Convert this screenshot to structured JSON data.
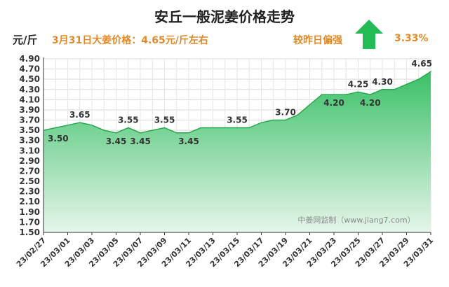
{
  "header": {
    "title": "安丘一般泥姜价格走势",
    "unit": "元/斤",
    "headline": "3月31日大姜价格：4.65元/斤左右",
    "compare_label": "较昨日偏强",
    "compare_value": "3.33%",
    "trend_icon": "up-arrow-icon",
    "trend_color": "#22bb55"
  },
  "watermark": "中姜网监制（www.jiang7.com）",
  "colors": {
    "area_top": "#3ac067",
    "area_bottom": "#e6f5ea",
    "line": "#2aa84f",
    "label": "#333333",
    "axis": "#333333"
  },
  "chart_data": {
    "type": "area",
    "title": "安丘一般泥姜价格走势",
    "ylabel": "元/斤",
    "ylim": [
      1.5,
      4.9
    ],
    "yticks": [
      1.5,
      1.7,
      1.9,
      2.1,
      2.3,
      2.5,
      2.7,
      2.9,
      3.1,
      3.3,
      3.5,
      3.7,
      3.9,
      4.1,
      4.3,
      4.5,
      4.7,
      4.9
    ],
    "grid": true,
    "x": [
      "23/02/27",
      "23/02/28",
      "23/03/01",
      "23/03/02",
      "23/03/03",
      "23/03/04",
      "23/03/05",
      "23/03/06",
      "23/03/07",
      "23/03/08",
      "23/03/09",
      "23/03/10",
      "23/03/11",
      "23/03/12",
      "23/03/13",
      "23/03/14",
      "23/03/15",
      "23/03/16",
      "23/03/17",
      "23/03/18",
      "23/03/19",
      "23/03/20",
      "23/03/21",
      "23/03/22",
      "23/03/23",
      "23/03/24",
      "23/03/25",
      "23/03/26",
      "23/03/27",
      "23/03/28",
      "23/03/29",
      "23/03/30",
      "23/03/31"
    ],
    "xtick_labels": [
      "23/02/27",
      "23/03/01",
      "23/03/03",
      "23/03/05",
      "23/03/07",
      "23/03/09",
      "23/03/11",
      "23/03/13",
      "23/03/15",
      "23/03/17",
      "23/03/19",
      "23/03/21",
      "23/03/23",
      "23/03/25",
      "23/03/27",
      "23/03/29",
      "23/03/31"
    ],
    "values": [
      3.5,
      3.55,
      3.6,
      3.65,
      3.6,
      3.5,
      3.45,
      3.55,
      3.45,
      3.5,
      3.55,
      3.45,
      3.45,
      3.55,
      3.55,
      3.55,
      3.55,
      3.55,
      3.65,
      3.7,
      3.7,
      3.8,
      4.0,
      4.2,
      4.2,
      4.2,
      4.25,
      4.2,
      4.3,
      4.3,
      4.4,
      4.5,
      4.65
    ],
    "data_labels": [
      {
        "i": 0,
        "text": "3.50",
        "pos": "below"
      },
      {
        "i": 3,
        "text": "3.65",
        "pos": "above"
      },
      {
        "i": 6,
        "text": "3.45",
        "pos": "below"
      },
      {
        "i": 7,
        "text": "3.55",
        "pos": "above"
      },
      {
        "i": 8,
        "text": "3.45",
        "pos": "below"
      },
      {
        "i": 10,
        "text": "3.55",
        "pos": "above"
      },
      {
        "i": 12,
        "text": "3.45",
        "pos": "below"
      },
      {
        "i": 16,
        "text": "3.55",
        "pos": "above"
      },
      {
        "i": 20,
        "text": "3.70",
        "pos": "above"
      },
      {
        "i": 24,
        "text": "4.20",
        "pos": "below"
      },
      {
        "i": 26,
        "text": "4.25",
        "pos": "above"
      },
      {
        "i": 27,
        "text": "4.20",
        "pos": "below"
      },
      {
        "i": 28,
        "text": "4.30",
        "pos": "above"
      },
      {
        "i": 32,
        "text": "4.65",
        "pos": "above"
      }
    ]
  }
}
